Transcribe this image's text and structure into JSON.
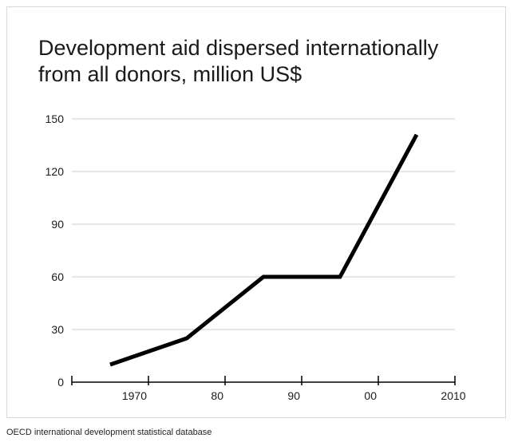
{
  "chart_data": {
    "type": "line",
    "title": "Development aid dispersed internationally from all donors, million US$",
    "xlabel": "",
    "ylabel": "",
    "x_ticks": [
      {
        "value": 1970,
        "label": "1970"
      },
      {
        "value": 1980,
        "label": "80"
      },
      {
        "value": 1990,
        "label": "90"
      },
      {
        "value": 2000,
        "label": "00"
      },
      {
        "value": 2010,
        "label": "2010"
      }
    ],
    "y_ticks": [
      0,
      30,
      60,
      90,
      120,
      150
    ],
    "xlim": [
      1960,
      2010
    ],
    "ylim": [
      0,
      150
    ],
    "grid": "horizontal",
    "series": [
      {
        "x": [
          1965,
          1975,
          1985,
          1995,
          2005
        ],
        "y": [
          10,
          25,
          60,
          60,
          141
        ],
        "color": "#000000"
      }
    ]
  },
  "source": "OECD international development statistical database"
}
